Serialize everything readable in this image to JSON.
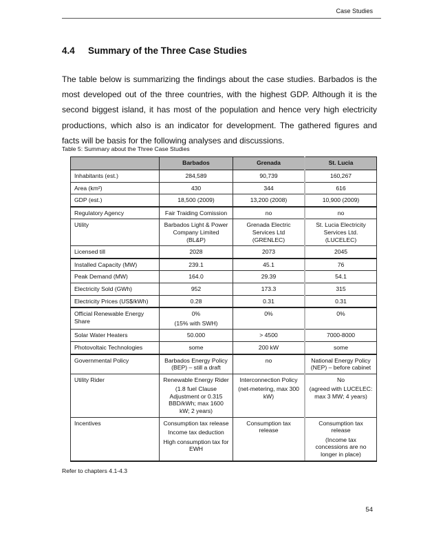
{
  "header": {
    "running_title": "Case Studies"
  },
  "section": {
    "number": "4.4",
    "title": "Summary of the Three Case Studies"
  },
  "paragraph": "The table below is summarizing the findings about the case studies. Barbados is the most developed out of the three countries, with the highest GDP. Although it is the second biggest island, it has most of the population and hence very high electricity productions, which also is an indicator for development. The gathered figures and facts will be basis for the following analyses and discussions.",
  "table": {
    "caption": "Table 5: Summary about the Three Case Studies",
    "columns": [
      "",
      "Barbados",
      "Grenada",
      "St. Lucia"
    ],
    "rows": [
      {
        "label": "Inhabitants (est.)",
        "cells": [
          [
            "284,589"
          ],
          [
            "90,739"
          ],
          [
            "160,267"
          ]
        ]
      },
      {
        "label": "Area (km²)",
        "cells": [
          [
            "430"
          ],
          [
            "344"
          ],
          [
            "616"
          ]
        ]
      },
      {
        "label": "GDP (est.)",
        "cells": [
          [
            "18,500 (2009)"
          ],
          [
            "13,200 (2008)"
          ],
          [
            "10,900 (2009)"
          ]
        ],
        "thick": true
      },
      {
        "label": "Regulatory Agency",
        "cells": [
          [
            "Fair Traiding Comission"
          ],
          [
            "no"
          ],
          [
            "no"
          ]
        ]
      },
      {
        "label": "Utility",
        "cells": [
          [
            "Barbados Light & Power Company Limited (BL&P)"
          ],
          [
            "Grenada Electric Services Ltd (GRENLEC)"
          ],
          [
            "St. Lucia Electricity Services Ltd. (LUCELEC)"
          ]
        ]
      },
      {
        "label": "Licensed till",
        "cells": [
          [
            "2028"
          ],
          [
            "2073"
          ],
          [
            "2045"
          ]
        ],
        "thick": true
      },
      {
        "label": "Installed Capacity (MW)",
        "cells": [
          [
            "239.1"
          ],
          [
            "45.1"
          ],
          [
            "76"
          ]
        ]
      },
      {
        "label": "Peak Demand (MW)",
        "cells": [
          [
            "164.0"
          ],
          [
            "29.39"
          ],
          [
            "54.1"
          ]
        ]
      },
      {
        "label": "Electricity Sold (GWh)",
        "cells": [
          [
            "952"
          ],
          [
            "173.3"
          ],
          [
            "315"
          ]
        ]
      },
      {
        "label": "Electricity Prices (US$/kWh)",
        "cells": [
          [
            "0.28"
          ],
          [
            "0.31"
          ],
          [
            "0.31"
          ]
        ],
        "thick": true
      },
      {
        "label": "Official Renewable Energy Share",
        "cells": [
          [
            "0%",
            "(15% with SWH)"
          ],
          [
            "0%"
          ],
          [
            "0%"
          ]
        ]
      },
      {
        "label": "Solar Water Heaters",
        "cells": [
          [
            "50.000"
          ],
          [
            "> 4500"
          ],
          [
            "7000-8000"
          ]
        ]
      },
      {
        "label": "Photovoltaic Technologies",
        "cells": [
          [
            "some"
          ],
          [
            "200 kW"
          ],
          [
            "some"
          ]
        ],
        "thick": true
      },
      {
        "label": "Governmental Policy",
        "cells": [
          [
            "Barbados Energy Policy (BEP) – still a draft"
          ],
          [
            "no"
          ],
          [
            "National Energy Policy (NEP) – before cabinet"
          ]
        ]
      },
      {
        "label": "Utility Rider",
        "cells": [
          [
            "Renewable Energy Rider",
            "(1.8 fuel Clause Adjustment or 0.315 BBD/kWh; max 1600 kW; 2 years)"
          ],
          [
            "Interconnection Policy",
            "(net-metering, max 300 kW)"
          ],
          [
            "No",
            "(agreed with LUCELEC: max 3 MW; 4 years)"
          ]
        ]
      },
      {
        "label": "Incentives",
        "cells": [
          [
            "Consumption tax release",
            "Income tax deduction",
            "High consumption tax for EWH"
          ],
          [
            "Consumption tax release"
          ],
          [
            "Consumption tax release",
            "(Income tax concessions are no longer in place)"
          ]
        ],
        "thick": true
      }
    ]
  },
  "note": "Refer to chapters 4.1-4.3",
  "page_number": "54"
}
